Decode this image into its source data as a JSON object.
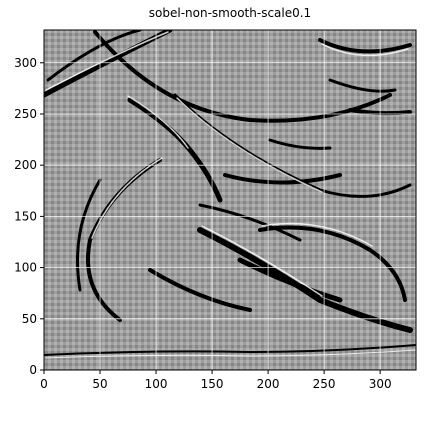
{
  "figure": {
    "title": "sobel-non-smooth-scale0.1"
  },
  "image_axes": {
    "x_ticks": [
      "0",
      "50",
      "100",
      "150",
      "200",
      "250",
      "300"
    ],
    "y_ticks": [
      "0",
      "50",
      "100",
      "150",
      "200",
      "250",
      "300"
    ],
    "x_range": [
      0,
      332
    ],
    "y_range": [
      0,
      332
    ],
    "grid": true,
    "colors": {
      "background": "#9e9e9e",
      "edge_dark": "#000000",
      "edge_light": "#ffffff",
      "grid": "#ffffff"
    }
  }
}
